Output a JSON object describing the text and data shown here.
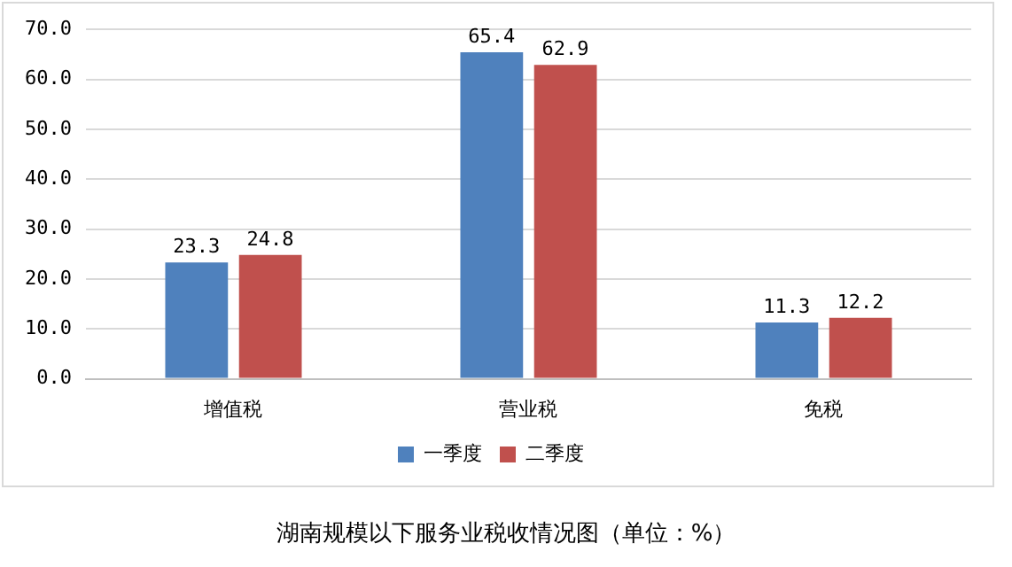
{
  "chart_data": {
    "type": "bar",
    "categories": [
      "增值税",
      "营业税",
      "免税"
    ],
    "series": [
      {
        "name": "一季度",
        "color": "#4f81bd",
        "values": [
          23.3,
          65.4,
          11.3
        ]
      },
      {
        "name": "二季度",
        "color": "#c0504d",
        "values": [
          24.8,
          62.9,
          12.2
        ]
      }
    ],
    "ylim": [
      0,
      70
    ],
    "yticks": [
      {
        "value": 0,
        "label": "0.0"
      },
      {
        "value": 10,
        "label": "10.0"
      },
      {
        "value": 20,
        "label": "20.0"
      },
      {
        "value": 30,
        "label": "30.0"
      },
      {
        "value": 40,
        "label": "40.0"
      },
      {
        "value": 50,
        "label": "50.0"
      },
      {
        "value": 60,
        "label": "60.0"
      },
      {
        "value": 70,
        "label": "70.0"
      }
    ],
    "grid": "y",
    "legend": "bottom",
    "data_labels": true,
    "annotations": [
      "湖南规模以下服务业税收情况图（单位：%）"
    ]
  }
}
